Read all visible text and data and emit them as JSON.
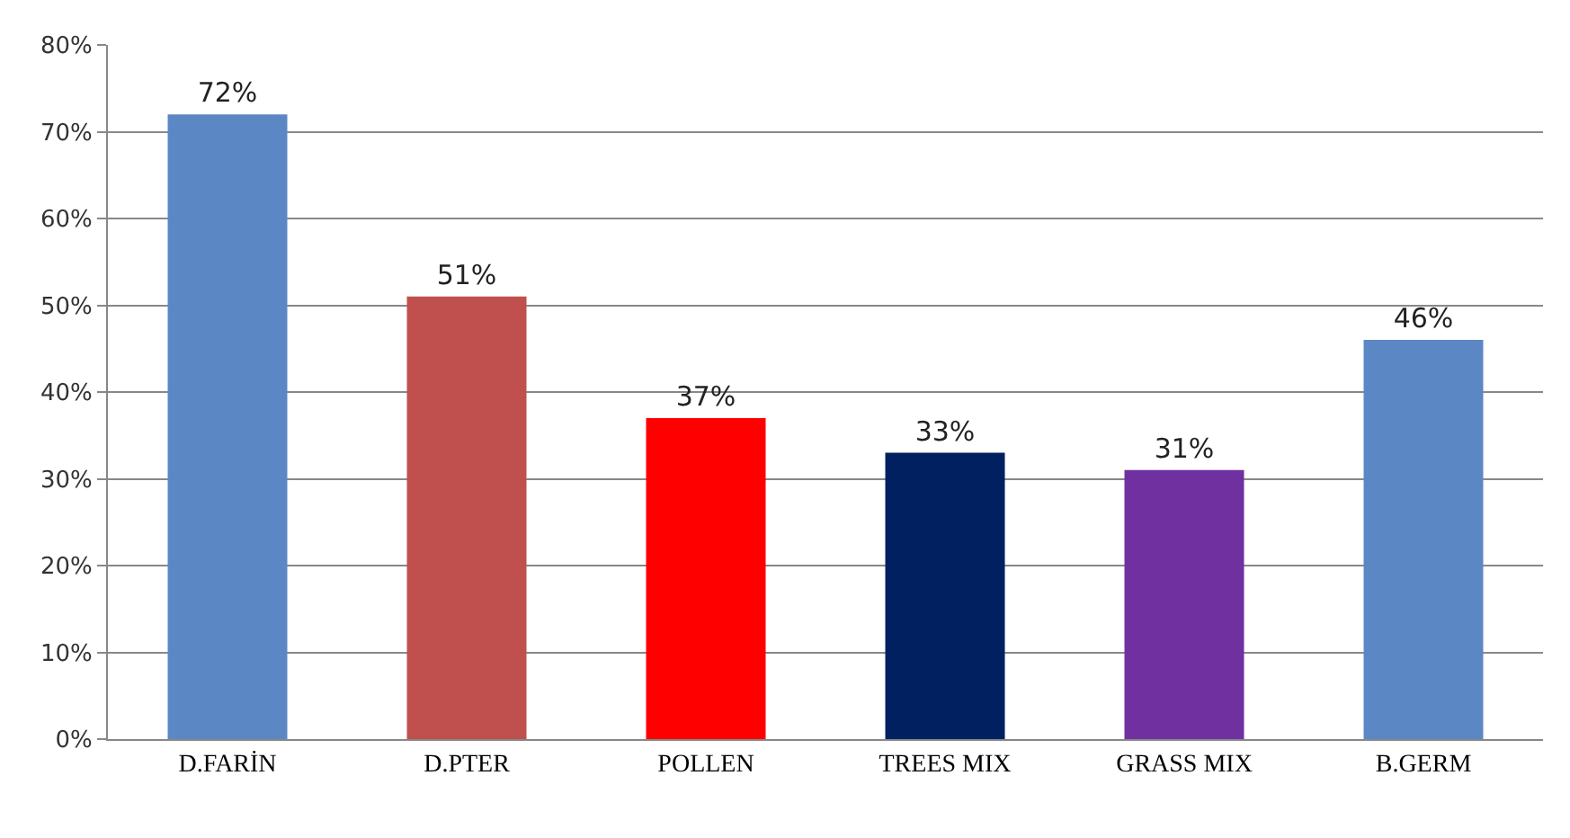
{
  "chart_data": {
    "type": "bar",
    "categories": [
      "D.FARİN",
      "D.PTER",
      "POLLEN",
      "TREES MIX",
      "GRASS MIX",
      "B.GERM"
    ],
    "values": [
      72,
      51,
      37,
      33,
      31,
      46
    ],
    "colors": [
      "#5b87c5",
      "#c0504d",
      "#ff0000",
      "#002060",
      "#7030a0",
      "#5b87c5"
    ],
    "value_labels": [
      "72%",
      "51%",
      "37%",
      "33%",
      "31%",
      "46%"
    ],
    "ylim": [
      0,
      80
    ],
    "yticks": [
      {
        "value": 0,
        "label": "0%"
      },
      {
        "value": 10,
        "label": "10%"
      },
      {
        "value": 20,
        "label": "20%"
      },
      {
        "value": 30,
        "label": "30%"
      },
      {
        "value": 40,
        "label": "40%"
      },
      {
        "value": 50,
        "label": "50%"
      },
      {
        "value": 60,
        "label": "60%"
      },
      {
        "value": 70,
        "label": "70%"
      },
      {
        "value": 80,
        "label": "80%"
      }
    ],
    "grid": "y",
    "legend": false
  }
}
